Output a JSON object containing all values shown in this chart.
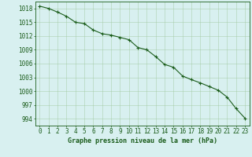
{
  "x": [
    0,
    1,
    2,
    3,
    4,
    5,
    6,
    7,
    8,
    9,
    10,
    11,
    12,
    13,
    14,
    15,
    16,
    17,
    18,
    19,
    20,
    21,
    22,
    23
  ],
  "y": [
    1018.5,
    1018.0,
    1017.2,
    1016.3,
    1015.0,
    1014.7,
    1013.3,
    1012.5,
    1012.2,
    1011.7,
    1011.2,
    1009.5,
    1009.0,
    1007.5,
    1005.8,
    1005.2,
    1003.3,
    1002.5,
    1001.8,
    1001.0,
    1000.2,
    998.7,
    996.2,
    994.1
  ],
  "line_color": "#1a5c1a",
  "marker": "+",
  "marker_size": 3,
  "marker_linewidth": 0.8,
  "background_color": "#d8f0f0",
  "grid_color": "#a0c8a0",
  "xlabel": "Graphe pression niveau de la mer (hPa)",
  "xlabel_fontsize": 6,
  "ylabel_ticks": [
    994,
    997,
    1000,
    1003,
    1006,
    1009,
    1012,
    1015,
    1018
  ],
  "xlim": [
    -0.5,
    23.5
  ],
  "ylim": [
    992.5,
    1019.5
  ],
  "tick_fontsize": 5.5,
  "axis_color": "#1a5c1a",
  "linewidth": 0.8
}
